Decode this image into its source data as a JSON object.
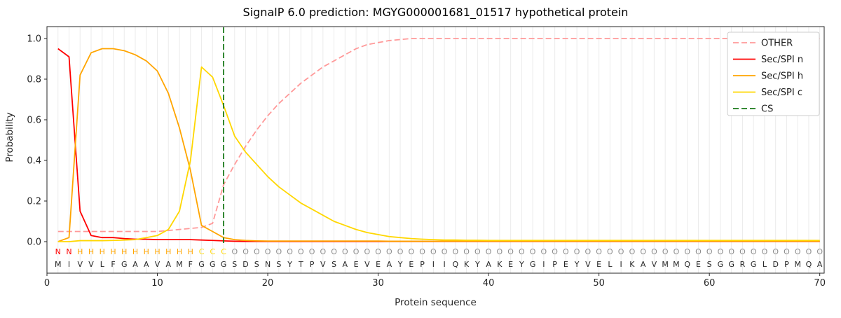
{
  "chart_data": {
    "type": "line",
    "title": "SignalP 6.0 prediction: MGYG000001681_01517 hypothetical protein",
    "xlabel": "Protein sequence",
    "ylabel": "Probability",
    "xlim": [
      0,
      70.4
    ],
    "ylim": [
      0,
      1.05
    ],
    "grid": true,
    "grid_color": "#ebebeb",
    "spine_color": "#262626",
    "legend_position": "upper right",
    "x_ticks": [
      0,
      10,
      20,
      30,
      40,
      50,
      60,
      70
    ],
    "y_ticks": [
      0.0,
      0.2,
      0.4,
      0.6,
      0.8,
      1.0
    ],
    "series": [
      {
        "name": "OTHER",
        "color": "#ff9999",
        "dash": "8,4",
        "values": [
          0.05,
          0.05,
          0.05,
          0.05,
          0.05,
          0.05,
          0.05,
          0.05,
          0.05,
          0.05,
          0.055,
          0.06,
          0.065,
          0.07,
          0.09,
          0.28,
          0.38,
          0.47,
          0.55,
          0.62,
          0.68,
          0.73,
          0.78,
          0.82,
          0.86,
          0.89,
          0.92,
          0.95,
          0.97,
          0.98,
          0.99,
          0.995,
          1.0,
          1.0,
          1.0,
          1.0,
          1.0,
          1.0,
          1.0,
          1.0,
          1.0,
          1.0,
          1.0,
          1.0,
          1.0,
          1.0,
          1.0,
          1.0,
          1.0,
          1.0,
          1.0,
          1.0,
          1.0,
          1.0,
          1.0,
          1.0,
          1.0,
          1.0,
          1.0,
          1.0,
          1.0,
          1.0,
          1.0,
          1.0,
          1.0,
          1.0,
          1.0,
          1.0,
          1.0,
          1.0
        ]
      },
      {
        "name": "Sec/SPI n",
        "color": "#ff0000",
        "dash": null,
        "values": [
          0.95,
          0.91,
          0.15,
          0.03,
          0.02,
          0.02,
          0.015,
          0.012,
          0.012,
          0.01,
          0.01,
          0.01,
          0.01,
          0.008,
          0.006,
          0.004,
          0.002,
          0.001,
          0.001,
          0.001,
          0.001,
          0.001,
          0.001,
          0.001,
          0.001,
          0.001,
          0.001,
          0.001,
          0.001,
          0.001,
          0.001,
          0.001,
          0.001,
          0.001,
          0.001,
          0.001,
          0.001,
          0.001,
          0.001,
          0.001,
          0.001,
          0.001,
          0.001,
          0.001,
          0.001,
          0.001,
          0.001,
          0.001,
          0.001,
          0.001,
          0.001,
          0.001,
          0.001,
          0.001,
          0.001,
          0.001,
          0.001,
          0.001,
          0.001,
          0.001,
          0.001,
          0.001,
          0.001,
          0.001,
          0.001,
          0.001,
          0.001,
          0.001,
          0.001,
          0.001
        ]
      },
      {
        "name": "Sec/SPI h",
        "color": "#ffa500",
        "dash": null,
        "values": [
          0.0,
          0.02,
          0.82,
          0.93,
          0.95,
          0.95,
          0.94,
          0.92,
          0.89,
          0.84,
          0.73,
          0.56,
          0.35,
          0.08,
          0.05,
          0.02,
          0.01,
          0.006,
          0.004,
          0.003,
          0.003,
          0.003,
          0.003,
          0.003,
          0.003,
          0.003,
          0.003,
          0.003,
          0.003,
          0.003,
          0.002,
          0.002,
          0.002,
          0.002,
          0.002,
          0.002,
          0.002,
          0.002,
          0.002,
          0.002,
          0.002,
          0.002,
          0.002,
          0.002,
          0.002,
          0.002,
          0.002,
          0.002,
          0.002,
          0.002,
          0.002,
          0.002,
          0.002,
          0.002,
          0.002,
          0.002,
          0.002,
          0.002,
          0.002,
          0.002,
          0.002,
          0.002,
          0.002,
          0.002,
          0.002,
          0.002,
          0.002,
          0.002,
          0.002,
          0.002
        ]
      },
      {
        "name": "Sec/SPI c",
        "color": "#ffd700",
        "dash": null,
        "values": [
          0.0,
          0.0,
          0.005,
          0.005,
          0.005,
          0.006,
          0.008,
          0.01,
          0.02,
          0.03,
          0.06,
          0.15,
          0.4,
          0.86,
          0.81,
          0.67,
          0.52,
          0.44,
          0.38,
          0.32,
          0.27,
          0.23,
          0.19,
          0.16,
          0.13,
          0.1,
          0.08,
          0.06,
          0.045,
          0.035,
          0.025,
          0.02,
          0.015,
          0.012,
          0.01,
          0.008,
          0.008,
          0.007,
          0.007,
          0.006,
          0.006,
          0.006,
          0.006,
          0.006,
          0.006,
          0.006,
          0.006,
          0.006,
          0.006,
          0.006,
          0.006,
          0.006,
          0.006,
          0.006,
          0.006,
          0.006,
          0.006,
          0.006,
          0.006,
          0.006,
          0.006,
          0.006,
          0.006,
          0.006,
          0.006,
          0.006,
          0.006,
          0.006,
          0.006,
          0.006
        ]
      }
    ],
    "cs_line": {
      "name": "CS",
      "x": 16,
      "color": "#1a7a1a",
      "dash": "8,4"
    },
    "residues": "MIVVLFGAAVAMFGGGSDSNSYTPVSAEVEAYEPIIQKYAKEYGIPEYVELIKAVMMQESGGRGLDPMQA",
    "region_labels": "NNHHHHHHHHHHHCCCOOOOOOOOOOOOOOOOOOOOOOOOOOOOOOOOOOOOOOOOOOOOOOOOOOOOOO",
    "label_colors": {
      "N": "#ff0000",
      "H": "#ffa500",
      "C": "#ffd700",
      "O": "#8c8c8c"
    }
  }
}
